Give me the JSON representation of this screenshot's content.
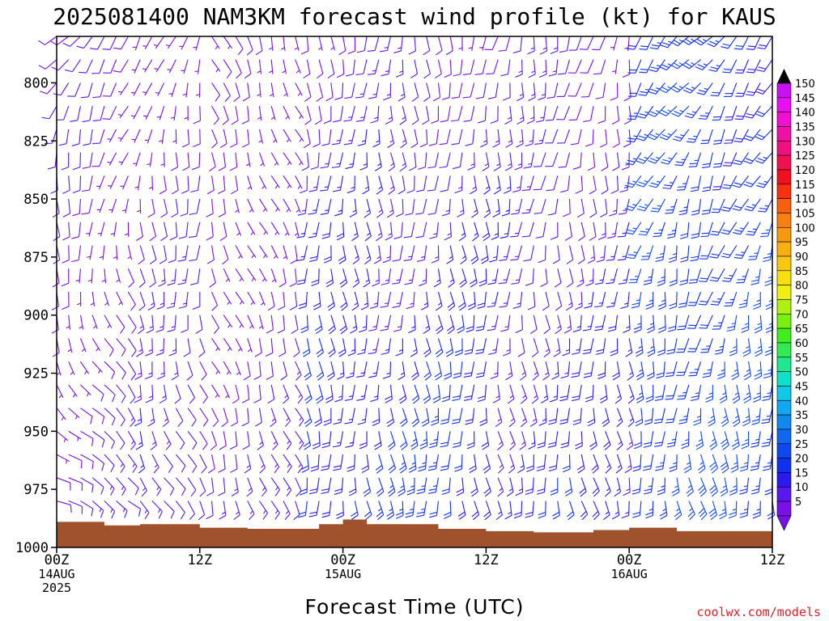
{
  "chart_data": {
    "type": "wind_barb_profile",
    "title": "2025081400 NAM3KM forecast wind profile (kt) for KAUS",
    "xlabel": "Forecast Time (UTC)",
    "ylabel": "",
    "y_axis": {
      "scale": "linear",
      "inverted": true,
      "ylim": [
        1000,
        780
      ],
      "ticks": [
        800,
        825,
        850,
        875,
        900,
        925,
        950,
        975,
        1000
      ]
    },
    "x_axis": {
      "xlim_hours": [
        0,
        60
      ],
      "ticks": [
        {
          "hour": 0,
          "line1": "00Z",
          "line2": "14AUG",
          "line3": "2025"
        },
        {
          "hour": 12,
          "line1": "12Z",
          "line2": "",
          "line3": ""
        },
        {
          "hour": 24,
          "line1": "00Z",
          "line2": "15AUG",
          "line3": ""
        },
        {
          "hour": 36,
          "line1": "12Z",
          "line2": "",
          "line3": ""
        },
        {
          "hour": 48,
          "line1": "00Z",
          "line2": "16AUG",
          "line3": ""
        },
        {
          "hour": 60,
          "line1": "12Z",
          "line2": "",
          "line3": ""
        }
      ]
    },
    "colorbar": {
      "unit": "kt",
      "levels": [
        5,
        10,
        15,
        20,
        25,
        30,
        35,
        40,
        45,
        50,
        55,
        60,
        65,
        70,
        75,
        80,
        85,
        90,
        95,
        100,
        105,
        110,
        115,
        120,
        125,
        130,
        135,
        140,
        145,
        150
      ],
      "colors": [
        "#7a10e8",
        "#5a18f0",
        "#2a1af0",
        "#1030f0",
        "#1048f0",
        "#1068f0",
        "#1088f0",
        "#10a8f0",
        "#10c8e8",
        "#10e0c8",
        "#20e890",
        "#30ec50",
        "#40ee20",
        "#78f010",
        "#b0f010",
        "#f0f010",
        "#f8e010",
        "#f8c810",
        "#f8b010",
        "#f89810",
        "#f88010",
        "#f86010",
        "#f83010",
        "#f01020",
        "#f01050",
        "#f01080",
        "#f010a8",
        "#f010d0",
        "#e810f0",
        "#c810f0"
      ]
    },
    "surface_pressure": {
      "color": "#a0522d",
      "hours": [
        0,
        4,
        7,
        12,
        16,
        22,
        24,
        26,
        32,
        36,
        40,
        45,
        48,
        52,
        60
      ],
      "pressure_hpa": [
        989,
        990.5,
        990,
        991.5,
        992,
        990,
        988,
        990,
        992,
        993,
        993.5,
        992.5,
        991.5,
        993,
        993
      ]
    },
    "wind_levels_hpa": [
      780,
      790,
      800,
      810,
      820,
      830,
      840,
      850,
      860,
      870,
      880,
      890,
      900,
      910,
      920,
      930,
      940,
      950,
      960,
      970,
      980
    ],
    "wind_hours_step": 1,
    "wind_regimes": [
      {
        "hours": [
          0,
          6
        ],
        "upper_dir": 220,
        "lower_dir": 120,
        "upper_speed": 8,
        "lower_speed": 10
      },
      {
        "hours": [
          6,
          12
        ],
        "upper_dir": 200,
        "lower_dir": 150,
        "upper_speed": 6,
        "lower_speed": 14
      },
      {
        "hours": [
          12,
          20
        ],
        "upper_dir": 160,
        "lower_dir": 160,
        "upper_speed": 5,
        "lower_speed": 12
      },
      {
        "hours": [
          20,
          36
        ],
        "upper_dir": 180,
        "lower_dir": 175,
        "upper_speed": 10,
        "lower_speed": 22
      },
      {
        "hours": [
          36,
          48
        ],
        "upper_dir": 190,
        "lower_dir": 170,
        "upper_speed": 10,
        "lower_speed": 18
      },
      {
        "hours": [
          48,
          60
        ],
        "upper_dir": 220,
        "lower_dir": 170,
        "upper_speed": 22,
        "lower_speed": 25
      }
    ]
  },
  "credit": "coolwx.com/models"
}
